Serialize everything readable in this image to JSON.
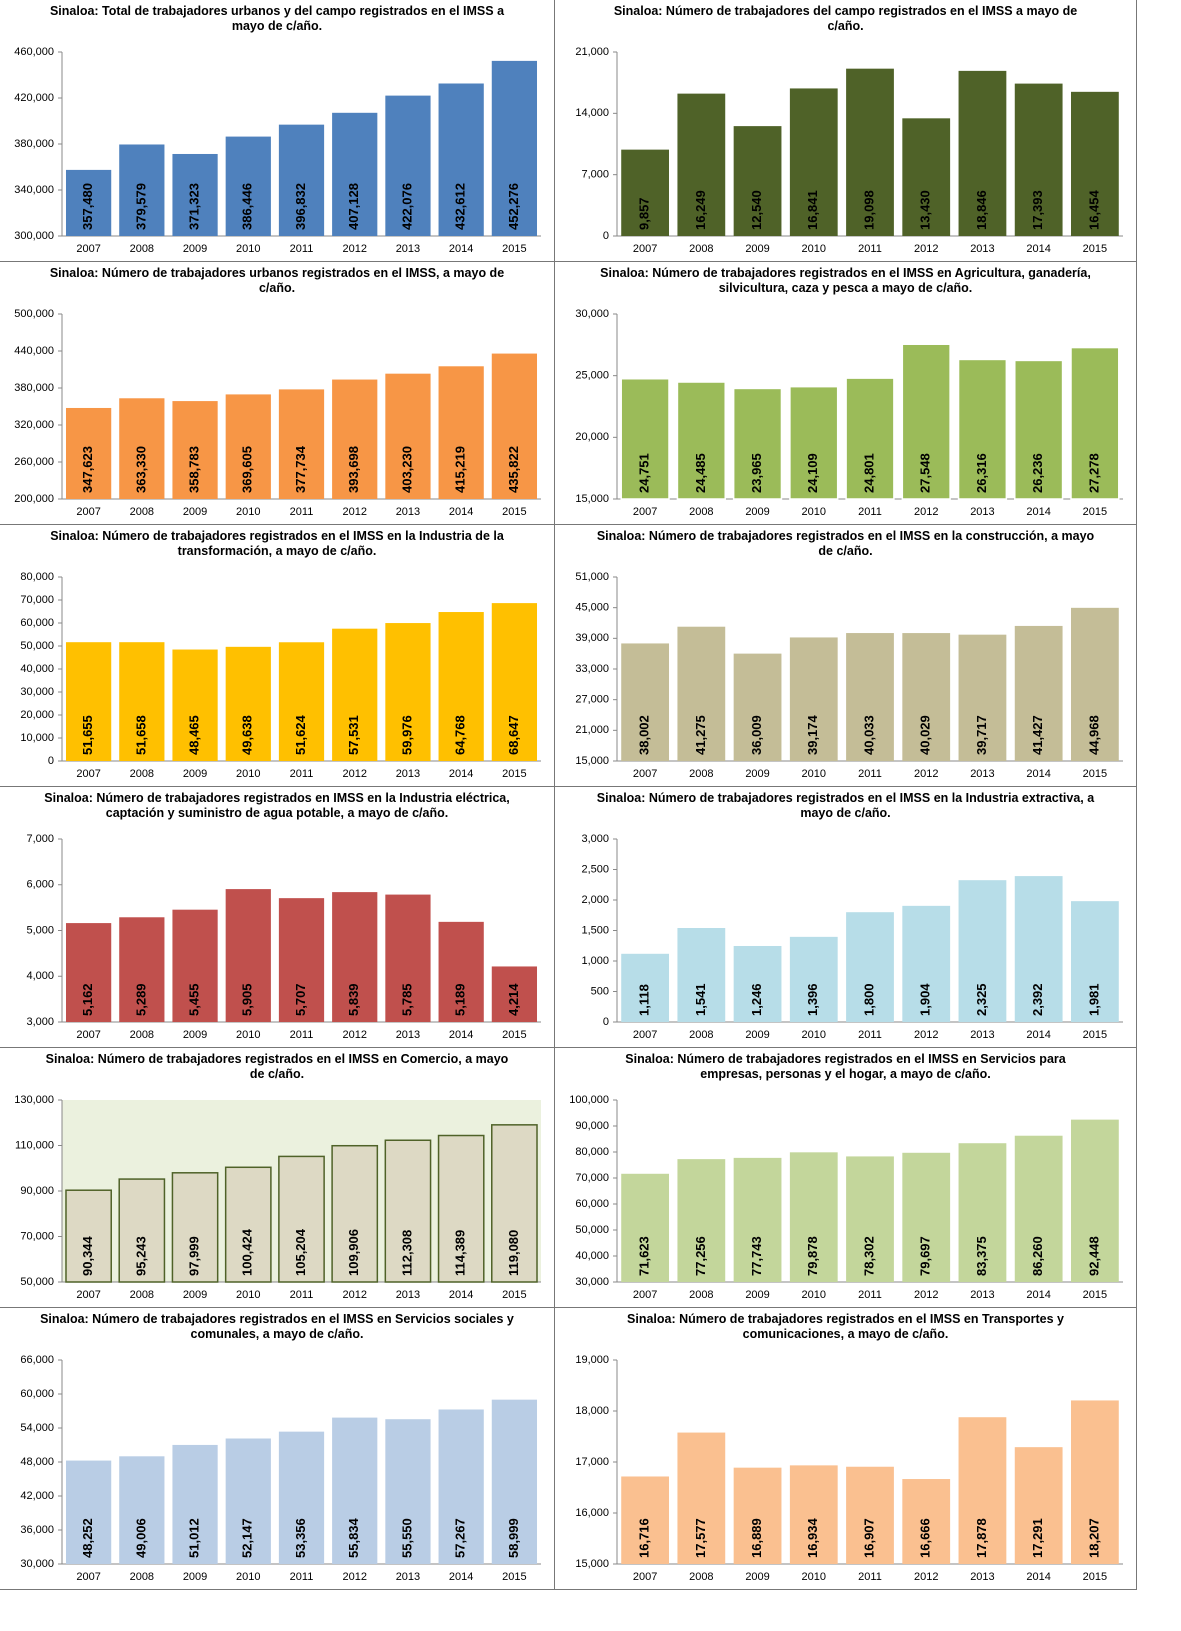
{
  "chart_data": [
    {
      "type": "bar",
      "title": "Sinaloa: Total de trabajadores urbanos y del campo registrados en el IMSS a mayo de c/año.",
      "categories": [
        "2007",
        "2008",
        "2009",
        "2010",
        "2011",
        "2012",
        "2013",
        "2014",
        "2015"
      ],
      "values": [
        357480,
        379579,
        371323,
        386446,
        396832,
        407128,
        422076,
        432612,
        452276
      ],
      "value_labels": [
        "357,480",
        "379,579",
        "371,323",
        "386,446",
        "396,832",
        "407,128",
        "422,076",
        "432,612",
        "452,276"
      ],
      "color": "#4f81bd",
      "ylim": [
        300000,
        460000
      ],
      "yticks": [
        {
          "value": 300000,
          "label": "300,000"
        },
        {
          "value": 340000,
          "label": "340,000"
        },
        {
          "value": 380000,
          "label": "380,000"
        },
        {
          "value": 420000,
          "label": "420,000"
        },
        {
          "value": 460000,
          "label": "460,000"
        }
      ]
    },
    {
      "type": "bar",
      "title": "Sinaloa: Número de trabajadores del campo registrados en el IMSS a mayo de c/año.",
      "categories": [
        "2007",
        "2008",
        "2009",
        "2010",
        "2011",
        "2012",
        "2013",
        "2014",
        "2015"
      ],
      "values": [
        9857,
        16249,
        12540,
        16841,
        19098,
        13430,
        18846,
        17393,
        16454
      ],
      "value_labels": [
        "9,857",
        "16,249",
        "12,540",
        "16,841",
        "19,098",
        "13,430",
        "18,846",
        "17,393",
        "16,454"
      ],
      "color": "#4f6228",
      "ylim": [
        0,
        21000
      ],
      "yticks": [
        0,
        {
          "value": 7000,
          "label": "7,000"
        },
        {
          "value": 14000,
          "label": "14,000"
        },
        {
          "value": 21000,
          "label": "21,000"
        }
      ]
    },
    {
      "type": "bar",
      "title": "Sinaloa: Número de trabajadores urbanos registrados en el IMSS, a mayo de c/año.",
      "categories": [
        "2007",
        "2008",
        "2009",
        "2010",
        "2011",
        "2012",
        "2013",
        "2014",
        "2015"
      ],
      "values": [
        347623,
        363330,
        358783,
        369605,
        377734,
        393698,
        403230,
        415219,
        435822
      ],
      "value_labels": [
        "347,623",
        "363,330",
        "358,783",
        "369,605",
        "377,734",
        "393,698",
        "403,230",
        "415,219",
        "435,822"
      ],
      "color": "#f79646",
      "ylim": [
        200000,
        500000
      ],
      "yticks": [
        {
          "value": 200000,
          "label": "200,000"
        },
        {
          "value": 260000,
          "label": "260,000"
        },
        {
          "value": 320000,
          "label": "320,000"
        },
        {
          "value": 380000,
          "label": "380,000"
        },
        {
          "value": 440000,
          "label": "440,000"
        },
        {
          "value": 500000,
          "label": "500,000"
        }
      ]
    },
    {
      "type": "bar",
      "title": "Sinaloa: Número de trabajadores registrados en el IMSS en Agricultura, ganadería, silvicultura, caza y pesca a mayo de c/año.",
      "categories": [
        "2007",
        "2008",
        "2009",
        "2010",
        "2011",
        "2012",
        "2013",
        "2014",
        "2015"
      ],
      "values": [
        24751,
        24485,
        23965,
        24109,
        24801,
        27548,
        26316,
        26236,
        27278
      ],
      "value_labels": [
        "24,751",
        "24,485",
        "23,965",
        "24,109",
        "24,801",
        "27,548",
        "26,316",
        "26,236",
        "27,278"
      ],
      "color": "#9bbb59",
      "edgecolor": "#ffffff",
      "ylim": [
        15000,
        30000
      ],
      "yticks": [
        {
          "value": 15000,
          "label": "15,000"
        },
        {
          "value": 20000,
          "label": "20,000"
        },
        {
          "value": 25000,
          "label": "25,000"
        },
        {
          "value": 30000,
          "label": "30,000"
        }
      ]
    },
    {
      "type": "bar",
      "title": "Sinaloa: Número de trabajadores registrados en el IMSS en la Industria de la transformación, a mayo de c/año.",
      "categories": [
        "2007",
        "2008",
        "2009",
        "2010",
        "2011",
        "2012",
        "2013",
        "2014",
        "2015"
      ],
      "values": [
        51655,
        51658,
        48465,
        49638,
        51624,
        57531,
        59976,
        64768,
        68647
      ],
      "value_labels": [
        "51,655",
        "51,658",
        "48,465",
        "49,638",
        "51,624",
        "57,531",
        "59,976",
        "64,768",
        "68,647"
      ],
      "color": "#ffc000",
      "ylim": [
        0,
        80000
      ],
      "yticks": [
        0,
        {
          "value": 10000,
          "label": "10,000"
        },
        {
          "value": 20000,
          "label": "20,000"
        },
        {
          "value": 30000,
          "label": "30,000"
        },
        {
          "value": 40000,
          "label": "40,000"
        },
        {
          "value": 50000,
          "label": "50,000"
        },
        {
          "value": 60000,
          "label": "60,000"
        },
        {
          "value": 70000,
          "label": "70,000"
        },
        {
          "value": 80000,
          "label": "80,000"
        }
      ]
    },
    {
      "type": "bar",
      "title": "Sinaloa: Número de trabajadores registrados en el IMSS en la construcción, a mayo de c/año.",
      "categories": [
        "2007",
        "2008",
        "2009",
        "2010",
        "2011",
        "2012",
        "2013",
        "2014",
        "2015"
      ],
      "values": [
        38002,
        41275,
        36009,
        39174,
        40033,
        40029,
        39717,
        41427,
        44968
      ],
      "value_labels": [
        "38,002",
        "41,275",
        "36,009",
        "39,174",
        "40,033",
        "40,029",
        "39,717",
        "41,427",
        "44,968"
      ],
      "color": "#c4bd97",
      "ylim": [
        15000,
        51000
      ],
      "yticks": [
        {
          "value": 15000,
          "label": "15,000"
        },
        {
          "value": 21000,
          "label": "21,000"
        },
        {
          "value": 27000,
          "label": "27,000"
        },
        {
          "value": 33000,
          "label": "33,000"
        },
        {
          "value": 39000,
          "label": "39,000"
        },
        {
          "value": 45000,
          "label": "45,000"
        },
        {
          "value": 51000,
          "label": "51,000"
        }
      ]
    },
    {
      "type": "bar",
      "title": "Sinaloa: Número de trabajadores registrados en IMSS en la Industria eléctrica, captación y suministro de agua potable, a mayo de c/año.",
      "categories": [
        "2007",
        "2008",
        "2009",
        "2010",
        "2011",
        "2012",
        "2013",
        "2014",
        "2015"
      ],
      "values": [
        5162,
        5289,
        5455,
        5905,
        5707,
        5839,
        5785,
        5189,
        4214
      ],
      "value_labels": [
        "5,162",
        "5,289",
        "5,455",
        "5,905",
        "5,707",
        "5,839",
        "5,785",
        "5,189",
        "4,214"
      ],
      "color": "#c0504d",
      "ylim": [
        3000,
        7000
      ],
      "yticks": [
        {
          "value": 3000,
          "label": "3,000"
        },
        {
          "value": 4000,
          "label": "4,000"
        },
        {
          "value": 5000,
          "label": "5,000"
        },
        {
          "value": 6000,
          "label": "6,000"
        },
        {
          "value": 7000,
          "label": "7,000"
        }
      ]
    },
    {
      "type": "bar",
      "title": "Sinaloa: Número de trabajadores registrados en el IMSS en la Industria extractiva, a mayo de c/año.",
      "categories": [
        "2007",
        "2008",
        "2009",
        "2010",
        "2011",
        "2012",
        "2013",
        "2014",
        "2015"
      ],
      "values": [
        1118,
        1541,
        1246,
        1396,
        1800,
        1904,
        2325,
        2392,
        1981
      ],
      "value_labels": [
        "1,118",
        "1,541",
        "1,246",
        "1,396",
        "1,800",
        "1,904",
        "2,325",
        "2,392",
        "1,981"
      ],
      "color": "#b7dde8",
      "ylim": [
        0,
        3000
      ],
      "yticks": [
        0,
        500,
        {
          "value": 1000,
          "label": "1,000"
        },
        {
          "value": 1500,
          "label": "1,500"
        },
        {
          "value": 2000,
          "label": "2,000"
        },
        {
          "value": 2500,
          "label": "2,500"
        },
        {
          "value": 3000,
          "label": "3,000"
        }
      ]
    },
    {
      "type": "bar",
      "title": "Sinaloa: Número de trabajadores registrados en el IMSS en Comercio, a mayo de c/año.",
      "categories": [
        "2007",
        "2008",
        "2009",
        "2010",
        "2011",
        "2012",
        "2013",
        "2014",
        "2015"
      ],
      "values": [
        90344,
        95243,
        97999,
        100424,
        105204,
        109906,
        112308,
        114389,
        119080
      ],
      "value_labels": [
        "90,344",
        "95,243",
        "97,999",
        "100,424",
        "105,204",
        "109,906",
        "112,308",
        "114,389",
        "119,080"
      ],
      "color": "#ddd9c4",
      "edgecolor": "#4f6228",
      "background": "#ebf1de",
      "ylim": [
        50000,
        130000
      ],
      "yticks": [
        {
          "value": 50000,
          "label": "50,000"
        },
        {
          "value": 70000,
          "label": "70,000"
        },
        {
          "value": 90000,
          "label": "90,000"
        },
        {
          "value": 110000,
          "label": "110,000"
        },
        {
          "value": 130000,
          "label": "130,000"
        }
      ]
    },
    {
      "type": "bar",
      "title": "Sinaloa: Número de trabajadores registrados en el IMSS en Servicios para empresas, personas y el hogar, a mayo de c/año.",
      "categories": [
        "2007",
        "2008",
        "2009",
        "2010",
        "2011",
        "2012",
        "2013",
        "2014",
        "2015"
      ],
      "values": [
        71623,
        77256,
        77743,
        79878,
        78302,
        79697,
        83375,
        86260,
        92448
      ],
      "value_labels": [
        "71,623",
        "77,256",
        "77,743",
        "79,878",
        "78,302",
        "79,697",
        "83,375",
        "86,260",
        "92,448"
      ],
      "color": "#c3d69b",
      "ylim": [
        30000,
        100000
      ],
      "yticks": [
        {
          "value": 30000,
          "label": "30,000"
        },
        {
          "value": 40000,
          "label": "40,000"
        },
        {
          "value": 50000,
          "label": "50,000"
        },
        {
          "value": 60000,
          "label": "60,000"
        },
        {
          "value": 70000,
          "label": "70,000"
        },
        {
          "value": 80000,
          "label": "80,000"
        },
        {
          "value": 90000,
          "label": "90,000"
        },
        {
          "value": 100000,
          "label": "100,000"
        }
      ]
    },
    {
      "type": "bar",
      "title": "Sinaloa: Número de trabajadores registrados en el IMSS en Servicios sociales y comunales, a mayo de c/año.",
      "categories": [
        "2007",
        "2008",
        "2009",
        "2010",
        "2011",
        "2012",
        "2013",
        "2014",
        "2015"
      ],
      "values": [
        48252,
        49006,
        51012,
        52147,
        53356,
        55834,
        55550,
        57267,
        58999
      ],
      "value_labels": [
        "48,252",
        "49,006",
        "51,012",
        "52,147",
        "53,356",
        "55,834",
        "55,550",
        "57,267",
        "58,999"
      ],
      "color": "#b9cde5",
      "ylim": [
        30000,
        66000
      ],
      "yticks": [
        {
          "value": 30000,
          "label": "30,000"
        },
        {
          "value": 36000,
          "label": "36,000"
        },
        {
          "value": 42000,
          "label": "42,000"
        },
        {
          "value": 48000,
          "label": "48,000"
        },
        {
          "value": 54000,
          "label": "54,000"
        },
        {
          "value": 60000,
          "label": "60,000"
        },
        {
          "value": 66000,
          "label": "66,000"
        }
      ]
    },
    {
      "type": "bar",
      "title": "Sinaloa: Número de trabajadores registrados en el IMSS en Transportes y comunicaciones, a mayo de c/año.",
      "categories": [
        "2007",
        "2008",
        "2009",
        "2010",
        "2011",
        "2012",
        "2013",
        "2014",
        "2015"
      ],
      "values": [
        16716,
        17577,
        16889,
        16934,
        16907,
        16666,
        17878,
        17291,
        18207
      ],
      "value_labels": [
        "16,716",
        "17,577",
        "16,889",
        "16,934",
        "16,907",
        "16,666",
        "17,878",
        "17,291",
        "18,207"
      ],
      "color": "#fac090",
      "ylim": [
        15000,
        19000
      ],
      "yticks": [
        {
          "value": 15000,
          "label": "15,000"
        },
        {
          "value": 16000,
          "label": "16,000"
        },
        {
          "value": 17000,
          "label": "17,000"
        },
        {
          "value": 18000,
          "label": "18,000"
        },
        {
          "value": 19000,
          "label": "19,000"
        }
      ]
    }
  ]
}
